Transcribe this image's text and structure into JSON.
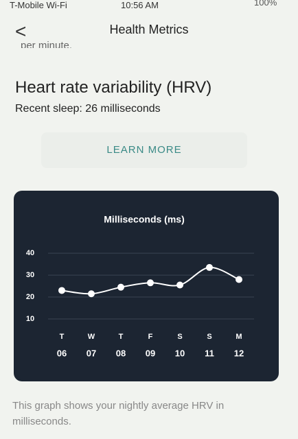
{
  "status_bar": {
    "carrier": "T-Mobile Wi-Fi",
    "time": "10:56 AM",
    "battery": "100%"
  },
  "nav": {
    "back": "<",
    "title": "Health Metrics"
  },
  "cut_text": "per minute.",
  "section": {
    "title": "Heart rate variability (HRV)",
    "subtitle": "Recent sleep: 26 milliseconds",
    "button": "LEARN MORE"
  },
  "chart_data": {
    "type": "line",
    "title": "Milliseconds (ms)",
    "categories": [
      "T",
      "W",
      "T",
      "F",
      "S",
      "S",
      "M"
    ],
    "dates": [
      "06",
      "07",
      "08",
      "09",
      "10",
      "11",
      "12"
    ],
    "values": [
      23,
      21.5,
      24.5,
      26.5,
      25.5,
      33.5,
      28
    ],
    "color": "#ffffff",
    "ylim": [
      10,
      46
    ],
    "yticks": [
      10,
      20,
      30,
      40
    ],
    "grid": true
  },
  "footer": "This graph shows your nightly average HRV in milliseconds."
}
